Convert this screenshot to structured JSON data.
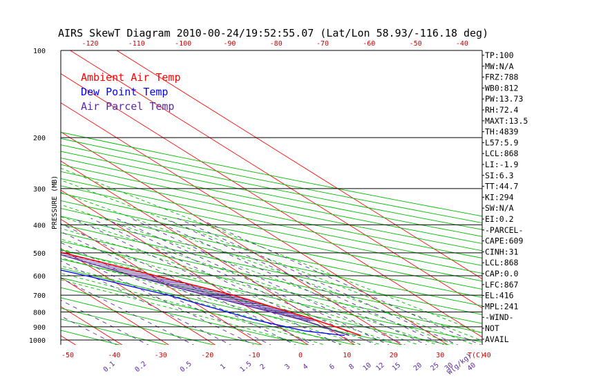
{
  "title": "AIRS SkewT Diagram 2010-00-24/19:52:55.07 (Lat/Lon 58.93/-116.18 deg)",
  "chart_data": {
    "type": "line",
    "title": "AIRS SkewT Diagram 2010-00-24/19:52:55.07 (Lat/Lon 58.93/-116.18 deg)",
    "ylabel": "PRESSURE (MB)",
    "xlabel": "T(C)",
    "mixing_ratio_unit": "W(g/kg)",
    "pressure_ticks": [
      100,
      200,
      300,
      400,
      500,
      600,
      700,
      800,
      900,
      1000
    ],
    "bottom_temperature_ticks": [
      -50,
      -40,
      -30,
      -20,
      -10,
      0,
      10,
      20,
      30,
      40
    ],
    "top_temperature_ticks": [
      -120,
      -110,
      -100,
      -90,
      -80,
      -70,
      -60,
      -50,
      -40
    ],
    "mixing_ratio_ticks": [
      "0.1",
      "0.2",
      "0.5",
      "1",
      "1.5",
      "2",
      "3",
      "4",
      "6",
      "8",
      "10",
      "12",
      "15",
      "20",
      "25",
      "30",
      "40"
    ],
    "legend": [
      {
        "label": "Ambient Air Temp",
        "color": "#ff0000"
      },
      {
        "label": "Dew Point Temp",
        "color": "#0000ff"
      },
      {
        "label": "Air Parcel Temp",
        "color": "#5a2aa0"
      }
    ],
    "series": [
      {
        "name": "Ambient Air Temp",
        "color": "#ff0000",
        "points": [
          [
            100,
            -51
          ],
          [
            160,
            -47
          ],
          [
            250,
            -49
          ],
          [
            300,
            -47
          ],
          [
            400,
            -35
          ],
          [
            500,
            -21
          ],
          [
            600,
            -9
          ],
          [
            700,
            1
          ],
          [
            850,
            10
          ],
          [
            965,
            14.5
          ]
        ]
      },
      {
        "name": "Dew Point Temp",
        "color": "#0000ff",
        "points": [
          [
            100,
            -88
          ],
          [
            160,
            -82
          ],
          [
            200,
            -74
          ],
          [
            250,
            -69
          ],
          [
            300,
            -67
          ],
          [
            400,
            -55
          ],
          [
            500,
            -38
          ],
          [
            600,
            -24
          ],
          [
            700,
            -13
          ],
          [
            850,
            -3
          ],
          [
            930,
            4
          ],
          [
            965,
            11
          ]
        ]
      },
      {
        "name": "Air Parcel Temp",
        "color": "#5a2aa0",
        "points": [
          [
            100,
            -91
          ],
          [
            200,
            -66
          ],
          [
            300,
            -46
          ],
          [
            400,
            -35
          ],
          [
            500,
            -23
          ],
          [
            600,
            -14
          ],
          [
            700,
            -5
          ],
          [
            850,
            7
          ],
          [
            965,
            12
          ]
        ]
      }
    ]
  },
  "side_panel": [
    "TP:100",
    "MW:N/A",
    "FRZ:788",
    "WB0:812",
    "PW:13.73",
    "RH:72.4",
    "MAXT:13.5",
    "TH:4839",
    "L57:5.9",
    "LCL:868",
    "LI:-1.9",
    "SI:6.3",
    "TT:44.7",
    "KI:294",
    "SW:N/A",
    "EI:0.2",
    "-PARCEL-",
    "CAPE:609",
    "CINH:31",
    "LCL:868",
    "CAP:0.0",
    "LFC:867",
    "EL:416",
    "MPL:241",
    "-WIND-",
    "NOT",
    "AVAIL"
  ],
  "colors": {
    "frame": "#000000",
    "isotherm": "#ff0000",
    "dry_adiabat": "#00bb00",
    "moist_adiabat": "#00bb00",
    "mixing_ratio": "#5a2aa0",
    "cape_hatch": "#5a2aa0",
    "tick_red": "#cc0000",
    "tick_purple": "#5a2aa0"
  }
}
